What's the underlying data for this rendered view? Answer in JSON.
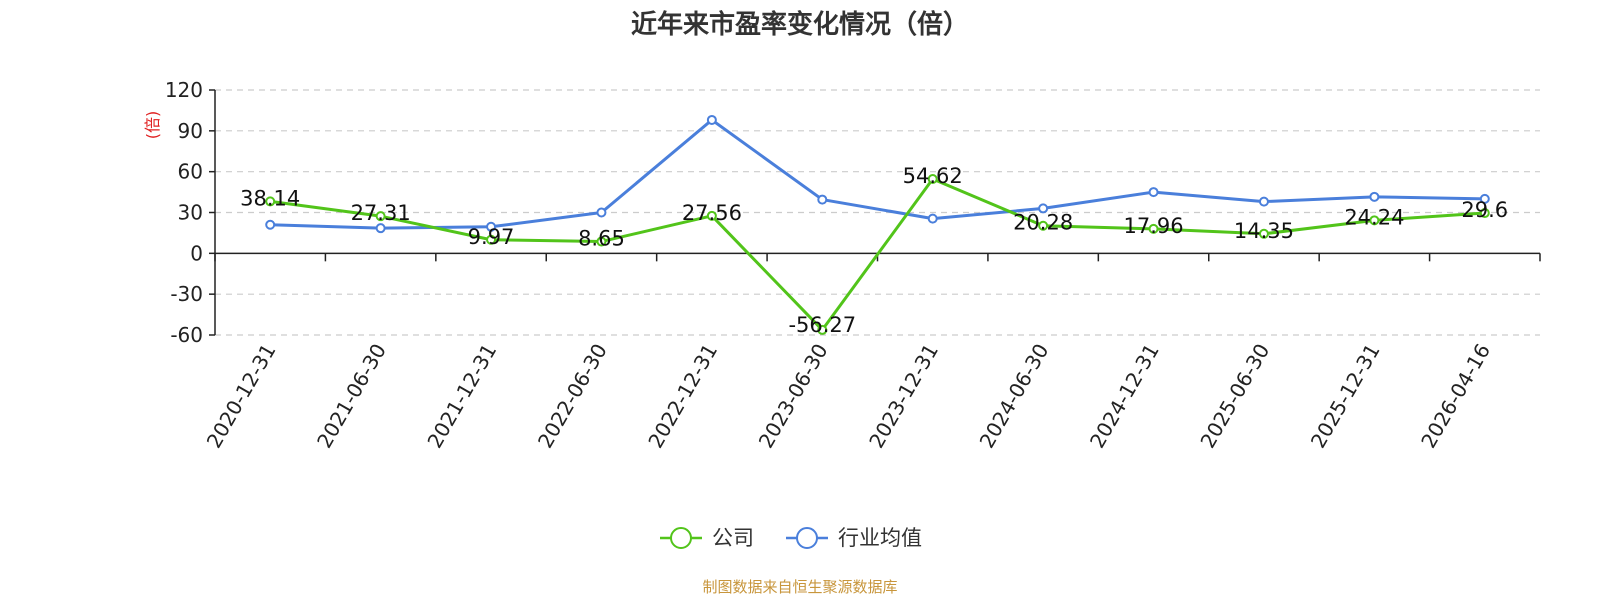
{
  "title": "近年来市盈率变化情况（倍）",
  "source_note": "制图数据来自恒生聚源数据库",
  "colors": {
    "company": "#52c41a",
    "industry": "#4a7fdb",
    "grid": "#cccccc",
    "axis": "#222222"
  },
  "chart_data": {
    "type": "line",
    "title": "近年来市盈率变化情况（倍）",
    "ylabel": "(倍)",
    "xlabel": "",
    "ylim": [
      -60,
      120
    ],
    "yticks": [
      120,
      90,
      60,
      30,
      0,
      -30,
      -60
    ],
    "grid": true,
    "legend_position": "bottom",
    "categories": [
      "2020-12-31",
      "2021-06-30",
      "2021-12-31",
      "2022-06-30",
      "2022-12-31",
      "2023-06-30",
      "2023-12-31",
      "2024-06-30",
      "2024-12-31",
      "2025-06-30",
      "2025-12-31",
      "2026-04-16"
    ],
    "series": [
      {
        "name": "公司",
        "color": "#52c41a",
        "values": [
          38.14,
          27.31,
          9.97,
          8.65,
          27.56,
          -56.27,
          54.62,
          20.28,
          17.96,
          14.35,
          24.24,
          29.6
        ],
        "labels": [
          "38.14",
          "27.31",
          "9.97",
          "8.65",
          "27.56",
          "-56.27",
          "54.62",
          "20.28",
          "17.96",
          "14.35",
          "24.24",
          "29.6"
        ]
      },
      {
        "name": "行业均值",
        "color": "#4a7fdb",
        "values": [
          21,
          18.5,
          19.5,
          30,
          98,
          39.5,
          25.5,
          33,
          45,
          38,
          41.5,
          40
        ]
      }
    ]
  }
}
